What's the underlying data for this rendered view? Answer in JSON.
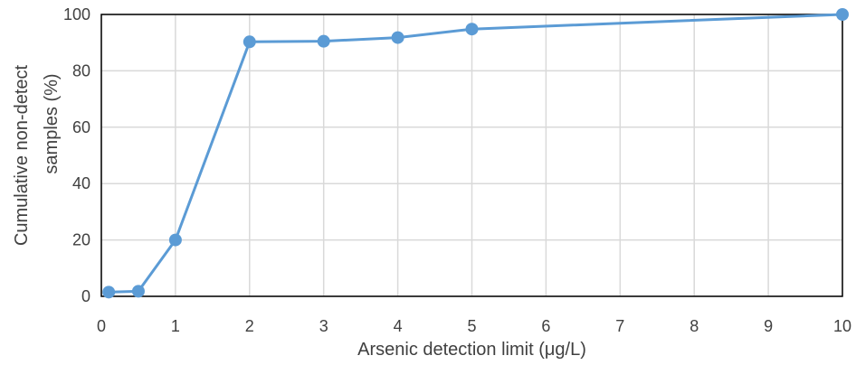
{
  "chart_data": {
    "type": "line",
    "title": "",
    "xlabel": "Arsenic detection limit (μg/L)",
    "ylabel_lines": [
      "Cumulative  non-detect",
      "samples (%)"
    ],
    "x": [
      0.1,
      0.5,
      1,
      2,
      3,
      4,
      5,
      10
    ],
    "series": [
      {
        "values": [
          1.5,
          1.8,
          20,
          90.3,
          90.5,
          91.8,
          94.8,
          100
        ]
      }
    ],
    "xlim": [
      0,
      10
    ],
    "ylim": [
      0,
      100
    ],
    "xticks": [
      0,
      1,
      2,
      3,
      4,
      5,
      6,
      7,
      8,
      9,
      10
    ],
    "yticks": [
      0,
      20,
      40,
      60,
      80,
      100
    ],
    "grid": true,
    "legend": "none",
    "colors": {
      "line": "#5b9bd5",
      "grid": "#d9d9d9",
      "frame": "#000000",
      "text": "#404040"
    }
  }
}
